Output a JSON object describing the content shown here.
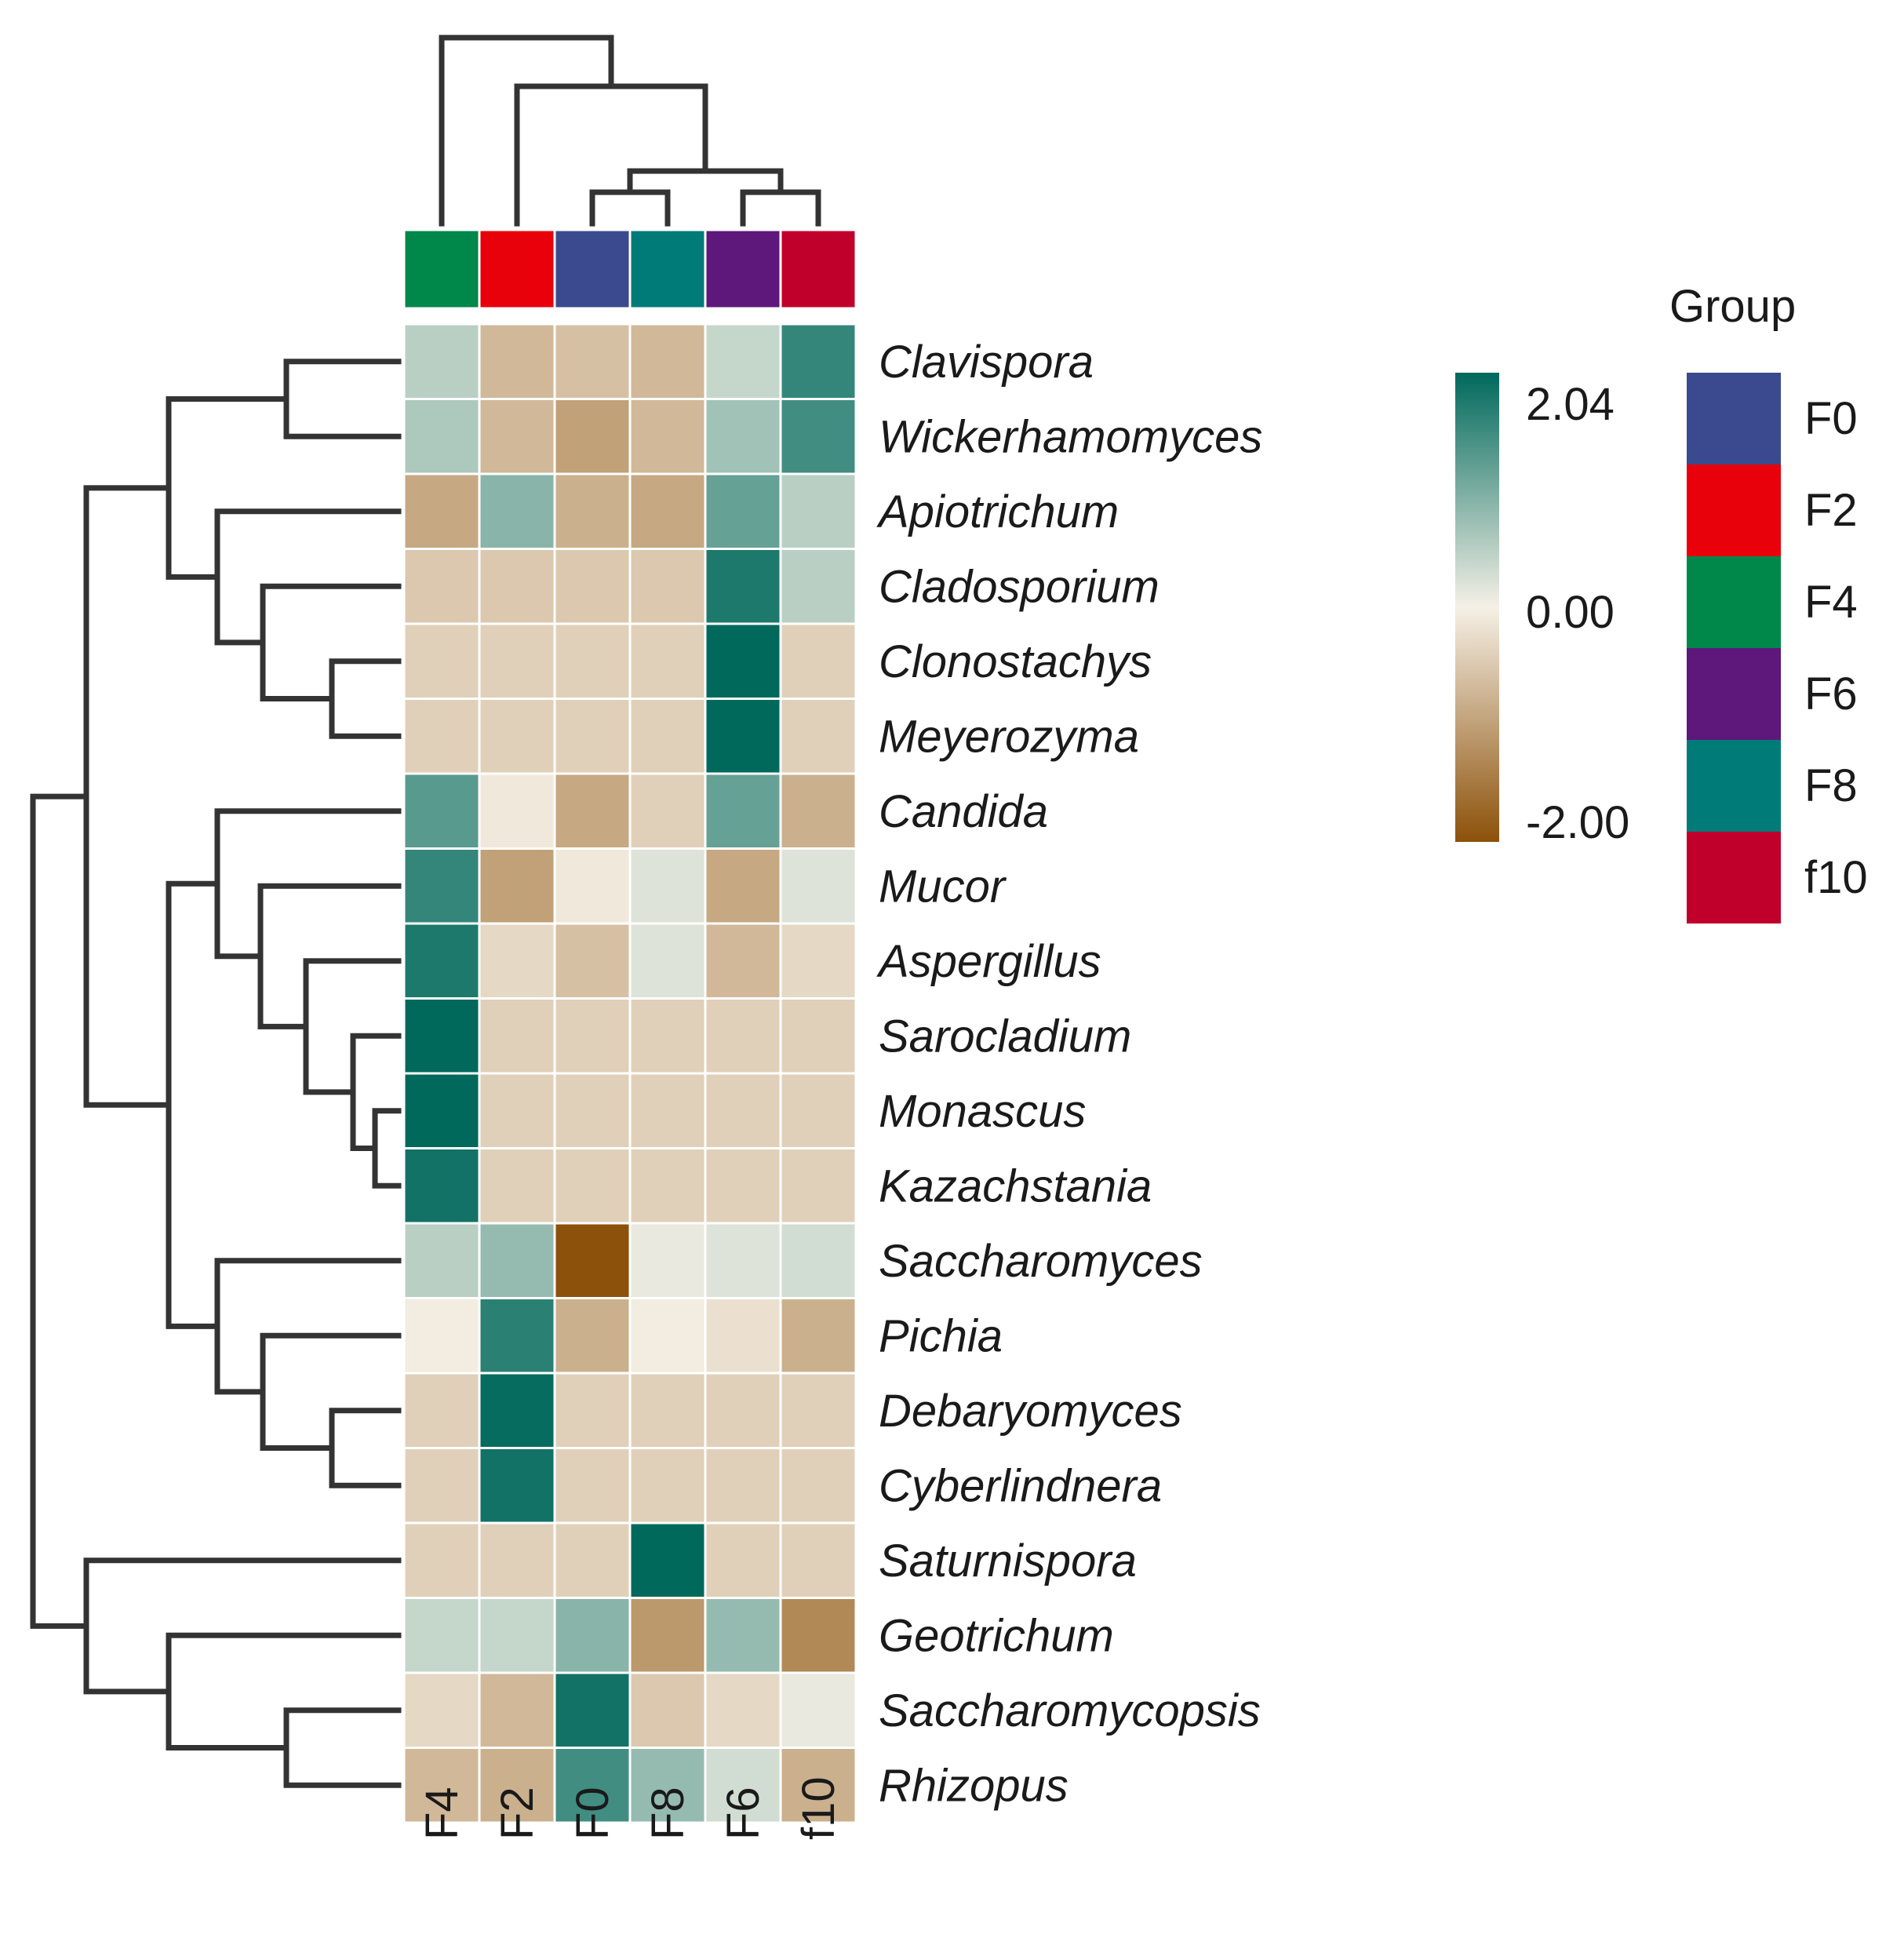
{
  "chart_data": {
    "type": "heatmap",
    "title": "",
    "columns": [
      "F4",
      "F2",
      "F0",
      "F8",
      "F6",
      "f10"
    ],
    "rows": [
      "Clavispora",
      "Wickerhamomyces",
      "Apiotrichum",
      "Cladosporium",
      "Clonostachys",
      "Meyerozyma",
      "Candida",
      "Mucor",
      "Aspergillus",
      "Sarocladium",
      "Monascus",
      "Kazachstania",
      "Saccharomyces",
      "Pichia",
      "Debaryomyces",
      "Cyberlindnera",
      "Saturnispora",
      "Geotrichum",
      "Saccharomycopsis",
      "Rhizopus"
    ],
    "values": [
      [
        0.5,
        -0.7,
        -0.6,
        -0.7,
        0.4,
        1.6
      ],
      [
        0.6,
        -0.7,
        -1.0,
        -0.7,
        0.7,
        1.5
      ],
      [
        -0.9,
        0.9,
        -0.8,
        -0.9,
        1.2,
        0.5
      ],
      [
        -0.5,
        -0.5,
        -0.5,
        -0.5,
        1.8,
        0.5
      ],
      [
        -0.4,
        -0.4,
        -0.4,
        -0.4,
        2.04,
        -0.4
      ],
      [
        -0.4,
        -0.4,
        -0.4,
        -0.4,
        2.04,
        -0.4
      ],
      [
        1.3,
        -0.1,
        -0.9,
        -0.4,
        1.2,
        -0.8
      ],
      [
        1.6,
        -1.0,
        -0.1,
        0.2,
        -0.9,
        0.2
      ],
      [
        1.8,
        -0.3,
        -0.6,
        0.2,
        -0.7,
        -0.3
      ],
      [
        2.04,
        -0.4,
        -0.4,
        -0.4,
        -0.4,
        -0.4
      ],
      [
        2.04,
        -0.4,
        -0.4,
        -0.4,
        -0.4,
        -0.4
      ],
      [
        1.9,
        -0.4,
        -0.4,
        -0.4,
        -0.4,
        -0.4
      ],
      [
        0.5,
        0.8,
        -2.0,
        0.1,
        0.2,
        0.3
      ],
      [
        -0.05,
        1.7,
        -0.8,
        -0.05,
        -0.2,
        -0.8
      ],
      [
        -0.4,
        2.0,
        -0.4,
        -0.4,
        -0.4,
        -0.4
      ],
      [
        -0.4,
        1.9,
        -0.4,
        -0.4,
        -0.4,
        -0.4
      ],
      [
        -0.4,
        -0.4,
        -0.4,
        2.04,
        -0.4,
        -0.4
      ],
      [
        0.4,
        0.4,
        0.9,
        -1.1,
        0.8,
        -1.3
      ],
      [
        -0.3,
        -0.7,
        1.9,
        -0.5,
        -0.3,
        0.1
      ],
      [
        -0.7,
        -0.8,
        1.5,
        0.8,
        0.3,
        -0.8
      ]
    ],
    "colorbar": {
      "max_label": "2.04",
      "mid_label": "0.00",
      "min_label": "-2.00",
      "range": [
        -2.0,
        2.04
      ],
      "colors": {
        "high": "#00695c",
        "mid": "#f5f0e6",
        "low": "#8c510a"
      }
    },
    "group_legend": {
      "title": "Group",
      "items": [
        {
          "label": "F0",
          "color": "#3b4a8f"
        },
        {
          "label": "F2",
          "color": "#e8000b"
        },
        {
          "label": "F4",
          "color": "#00874a"
        },
        {
          "label": "F6",
          "color": "#5e177a"
        },
        {
          "label": "F8",
          "color": "#007b78"
        },
        {
          "label": "f10",
          "color": "#c0002a"
        }
      ]
    },
    "column_annotation_colors": [
      "#00874a",
      "#e8000b",
      "#3b4a8f",
      "#007b78",
      "#5e177a",
      "#c0002a"
    ],
    "dendrogram_color": "#333333"
  }
}
